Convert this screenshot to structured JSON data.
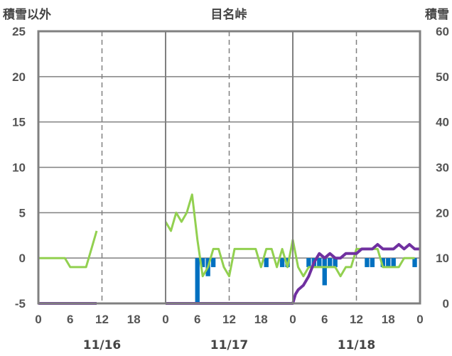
{
  "chart_data": {
    "type": "bar+line",
    "title": "目名峠",
    "y_left_label": "積雪以外",
    "y_right_label": "積雪",
    "y_left_range": [
      -5,
      25
    ],
    "y_left_ticks": [
      "25",
      "20",
      "15",
      "10",
      "5",
      "0",
      "-5"
    ],
    "y_right_range": [
      0,
      60
    ],
    "y_right_ticks": [
      "60",
      "50",
      "40",
      "30",
      "20",
      "10",
      "0"
    ],
    "x_range_hours": [
      0,
      72
    ],
    "x_tick_labels": [
      "0",
      "6",
      "12",
      "18",
      "0",
      "6",
      "12",
      "18",
      "0",
      "6",
      "12",
      "18",
      "0"
    ],
    "date_labels": [
      "11/16",
      "11/17",
      "11/18"
    ],
    "grid": true,
    "colors": {
      "temperature": "#92D050",
      "precipitation": "#0070C0",
      "snow_depth": "#7030A0",
      "frame": "#808080",
      "grid": "#808080"
    },
    "series": [
      {
        "key": "temperature",
        "axis": "left",
        "values": [
          [
            0,
            0
          ],
          [
            1,
            0
          ],
          [
            2,
            0
          ],
          [
            3,
            0
          ],
          [
            4,
            0
          ],
          [
            5,
            0
          ],
          [
            6,
            -1
          ],
          [
            7,
            -1
          ],
          [
            8,
            -1
          ],
          [
            9,
            -1
          ],
          [
            10,
            1
          ],
          [
            11,
            3
          ],
          [
            24,
            4
          ],
          [
            25,
            3
          ],
          [
            26,
            5
          ],
          [
            27,
            4
          ],
          [
            28,
            5
          ],
          [
            29,
            7
          ],
          [
            30,
            2
          ],
          [
            31,
            -2
          ],
          [
            32,
            -1
          ],
          [
            33,
            1
          ],
          [
            34,
            1
          ],
          [
            35,
            -1
          ],
          [
            36,
            -2
          ],
          [
            37,
            1
          ],
          [
            38,
            1
          ],
          [
            39,
            1
          ],
          [
            40,
            1
          ],
          [
            41,
            1
          ],
          [
            42,
            -1
          ],
          [
            43,
            1
          ],
          [
            44,
            1
          ],
          [
            45,
            -1
          ],
          [
            46,
            1
          ],
          [
            47,
            -1
          ],
          [
            48,
            2
          ],
          [
            49,
            -1
          ],
          [
            50,
            -2
          ],
          [
            51,
            -1
          ],
          [
            52,
            -1
          ],
          [
            53,
            -1
          ],
          [
            54,
            -1
          ],
          [
            55,
            -1
          ],
          [
            56,
            -1
          ],
          [
            57,
            -2
          ],
          [
            58,
            -1
          ],
          [
            59,
            -1
          ],
          [
            60,
            1
          ],
          [
            61,
            1
          ],
          [
            62,
            1
          ],
          [
            63,
            1
          ],
          [
            64,
            1
          ],
          [
            65,
            -1
          ],
          [
            66,
            -1
          ],
          [
            67,
            -1
          ],
          [
            68,
            -1
          ],
          [
            69,
            0
          ],
          [
            70,
            0
          ],
          [
            71,
            0
          ]
        ]
      },
      {
        "key": "snow_depth",
        "axis": "right",
        "values": [
          [
            0,
            0
          ],
          [
            1,
            0
          ],
          [
            2,
            0
          ],
          [
            3,
            0
          ],
          [
            4,
            0
          ],
          [
            5,
            0
          ],
          [
            6,
            0
          ],
          [
            7,
            0
          ],
          [
            8,
            0
          ],
          [
            9,
            0
          ],
          [
            10,
            0
          ],
          [
            11,
            0
          ],
          [
            24,
            0
          ],
          [
            25,
            0
          ],
          [
            26,
            0
          ],
          [
            27,
            0
          ],
          [
            28,
            0
          ],
          [
            29,
            0
          ],
          [
            30,
            0
          ],
          [
            31,
            0
          ],
          [
            32,
            0
          ],
          [
            33,
            0
          ],
          [
            34,
            0
          ],
          [
            35,
            0
          ],
          [
            36,
            0
          ],
          [
            37,
            0
          ],
          [
            38,
            0
          ],
          [
            39,
            0
          ],
          [
            40,
            0
          ],
          [
            41,
            0
          ],
          [
            42,
            0
          ],
          [
            43,
            0
          ],
          [
            44,
            0
          ],
          [
            45,
            0
          ],
          [
            46,
            0
          ],
          [
            47,
            0
          ],
          [
            48,
            0
          ],
          [
            48.5,
            2
          ],
          [
            49,
            3
          ],
          [
            50,
            4
          ],
          [
            51,
            6
          ],
          [
            52,
            9
          ],
          [
            53,
            11
          ],
          [
            54,
            10
          ],
          [
            55,
            11
          ],
          [
            56,
            10
          ],
          [
            57,
            10
          ],
          [
            58,
            11
          ],
          [
            59,
            11
          ],
          [
            60,
            11
          ],
          [
            61,
            12
          ],
          [
            62,
            12
          ],
          [
            63,
            12
          ],
          [
            64,
            13
          ],
          [
            65,
            12
          ],
          [
            66,
            12
          ],
          [
            67,
            12
          ],
          [
            68,
            13
          ],
          [
            69,
            12
          ],
          [
            70,
            13
          ],
          [
            71,
            12
          ],
          [
            72,
            12
          ]
        ]
      },
      {
        "key": "precipitation",
        "axis": "left",
        "type": "bar",
        "values": [
          [
            30,
            -5
          ],
          [
            31,
            -1
          ],
          [
            32,
            -2
          ],
          [
            33,
            -1
          ],
          [
            43,
            -1
          ],
          [
            46,
            -1
          ],
          [
            47,
            -1
          ],
          [
            51,
            -1
          ],
          [
            52,
            -1
          ],
          [
            53,
            -1
          ],
          [
            54,
            -3
          ],
          [
            55,
            -1
          ],
          [
            56,
            -1
          ],
          [
            62,
            -1
          ],
          [
            63,
            -1
          ],
          [
            65,
            -1
          ],
          [
            66,
            -1
          ],
          [
            67,
            -1
          ],
          [
            71,
            -1
          ]
        ]
      }
    ]
  }
}
